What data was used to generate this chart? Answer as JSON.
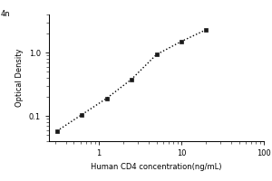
{
  "x_data": [
    0.313,
    0.625,
    1.25,
    2.5,
    5.0,
    10.0,
    20.0
  ],
  "y_data": [
    0.058,
    0.105,
    0.19,
    0.38,
    0.93,
    1.5,
    2.3
  ],
  "x_label": "Human CD4 concentration(ng/mL)",
  "y_label": "Optical Density",
  "x_lim": [
    0.25,
    100
  ],
  "y_lim": [
    0.04,
    4
  ],
  "y_top_label": "4n",
  "line_color": "#000000",
  "marker_color": "#1a1a1a",
  "marker_style": "s",
  "marker_size": 3.5,
  "line_style": ":",
  "line_width": 1.0,
  "background_color": "#ffffff",
  "axis_label_fontsize": 6.0,
  "tick_fontsize": 6.0,
  "y_ticks": [
    0.1,
    1
  ],
  "x_ticks": [
    1,
    10,
    100
  ]
}
